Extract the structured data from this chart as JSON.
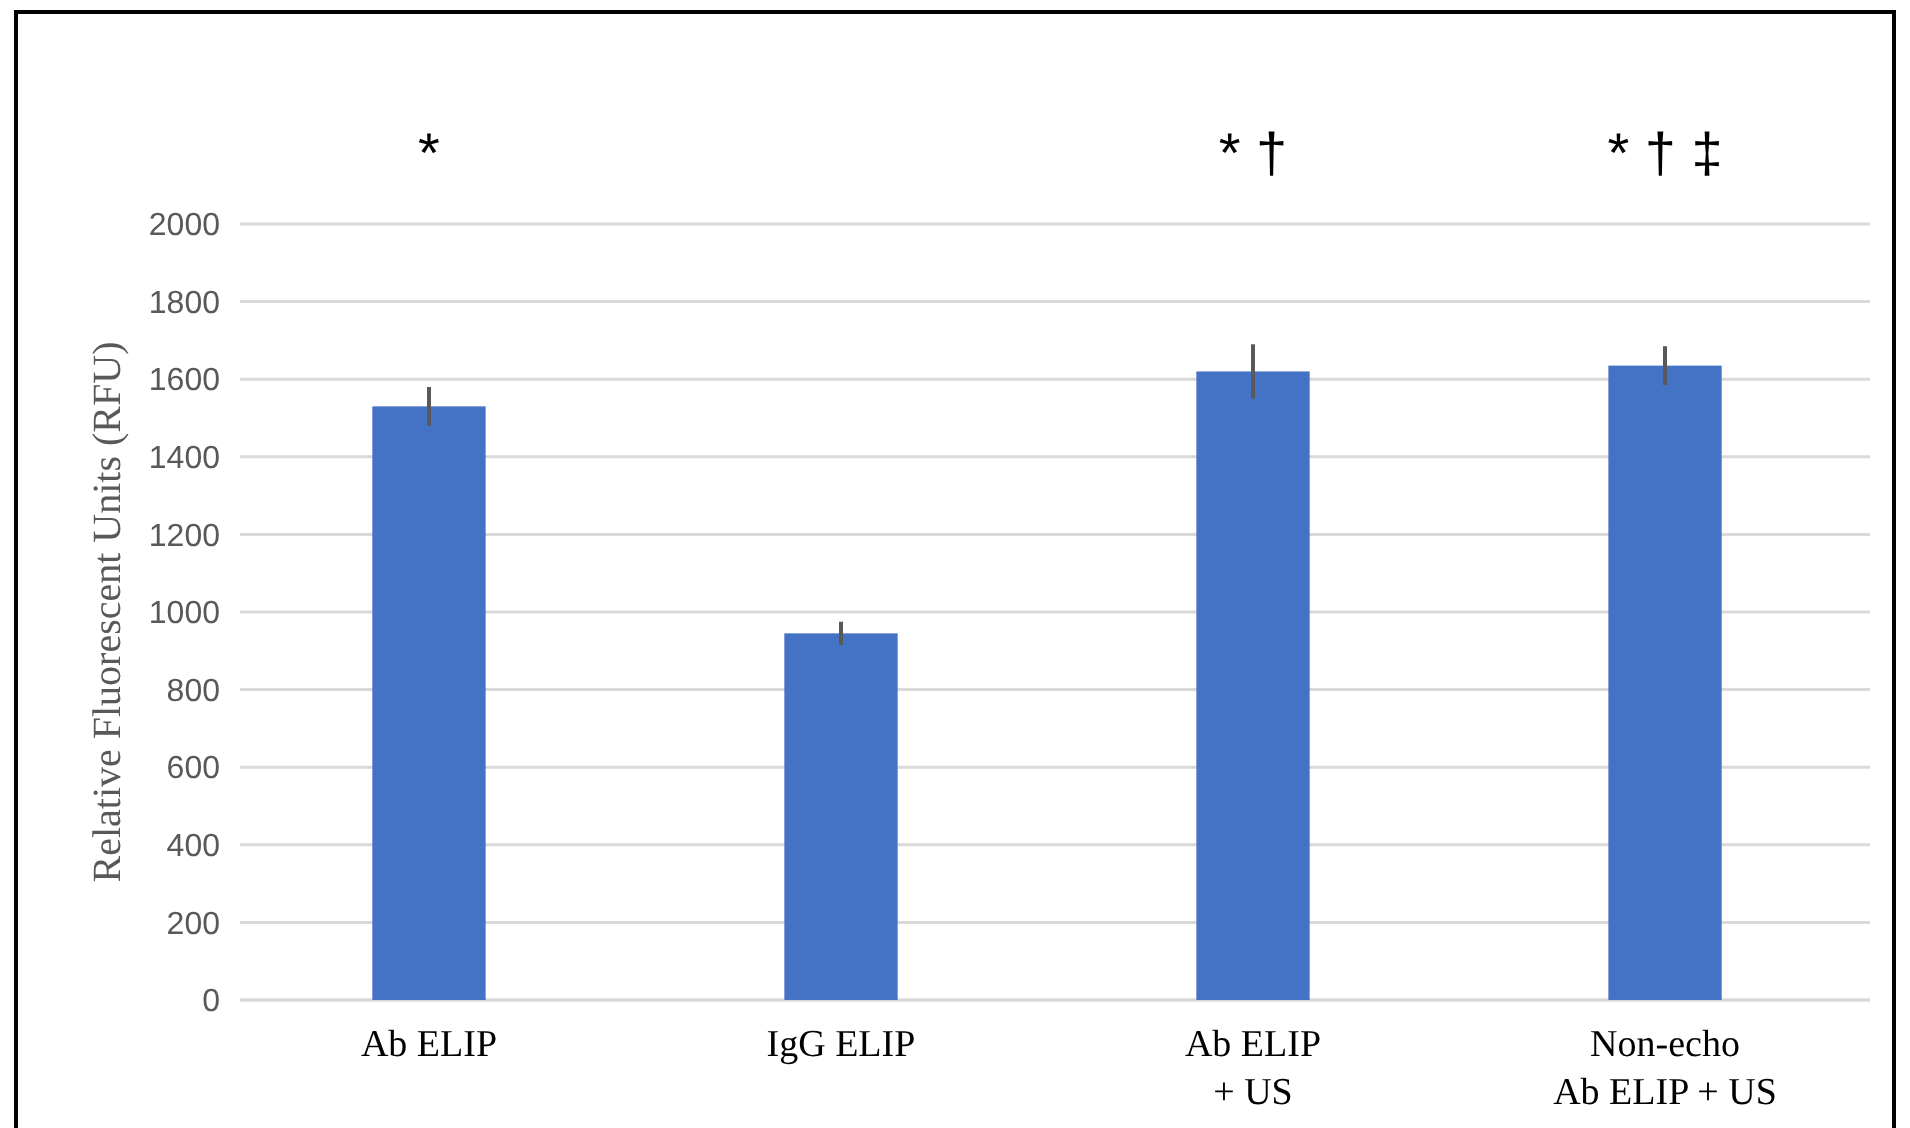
{
  "chart_data": {
    "type": "bar",
    "ylabel": "Relative Fluorescent Units (RFU)",
    "categories": [
      "Ab ELIP",
      "IgG ELIP",
      "Ab ELIP\n+ US",
      "Non-echo\nAb ELIP + US"
    ],
    "values": [
      1530,
      945,
      1620,
      1635
    ],
    "errors": [
      50,
      30,
      70,
      50
    ],
    "color": "#4472c4",
    "ylim": [
      0,
      2000
    ],
    "yticks": [
      0,
      200,
      400,
      600,
      800,
      1000,
      1200,
      1400,
      1600,
      1800,
      2000
    ],
    "grid": "y",
    "annotations": [
      "*",
      "* †",
      "* † ‡"
    ]
  }
}
